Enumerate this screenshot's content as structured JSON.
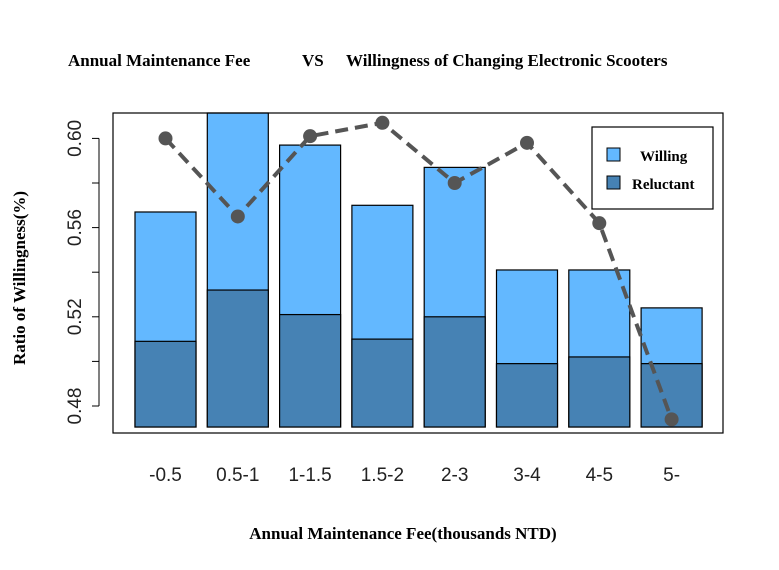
{
  "chart_data": {
    "type": "bar",
    "title_left": "Annual Maintenance Fee",
    "title_mid": "VS",
    "title_right": "Willingness of Changing Electronic Scooters",
    "xlabel": "Annual Maintenance Fee(thousands NTD)",
    "ylabel": "Ratio of Willingness(%)",
    "categories": [
      "-0.5",
      "0.5-1",
      "1-1.5",
      "1.5-2",
      "2-3",
      "3-4",
      "4-5",
      "5-"
    ],
    "ylim": [
      0.471,
      0.612
    ],
    "yticks": [
      "0.48",
      "0.52",
      "0.56",
      "0.60"
    ],
    "series": [
      {
        "name": "Willing",
        "values": [
          0.567,
          0.612,
          0.597,
          0.57,
          0.587,
          0.541,
          0.541,
          0.524
        ],
        "color": "#63B8FF"
      },
      {
        "name": "Reluctant",
        "values": [
          0.509,
          0.532,
          0.521,
          0.51,
          0.52,
          0.499,
          0.502,
          0.499
        ],
        "color": "#4682B4"
      }
    ],
    "line": {
      "values": [
        0.6,
        0.565,
        0.601,
        0.607,
        0.58,
        0.598,
        0.562,
        0.474
      ],
      "color": "#555555",
      "style": "dashed"
    },
    "legend": {
      "position": "top-right"
    },
    "grid": false
  }
}
